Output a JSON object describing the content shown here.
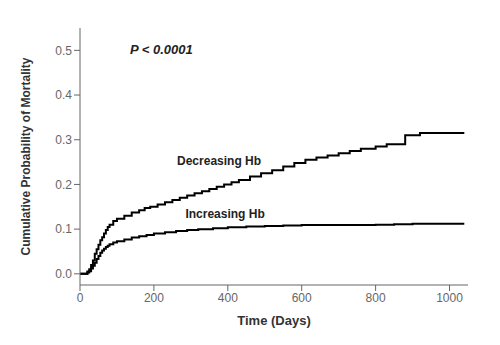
{
  "chart_data": {
    "type": "line",
    "line_style": "step",
    "xlabel": "Time (Days)",
    "ylabel": "Cumulative Probability of Mortality",
    "annotations": [
      {
        "text": "P < 0.0001"
      }
    ],
    "xlim": [
      0,
      1050
    ],
    "xticks": [
      0,
      200,
      400,
      600,
      800,
      1000
    ],
    "ylim": [
      -0.025,
      0.55
    ],
    "yticks": [
      {
        "value": 0.0,
        "label": "0.0"
      },
      0.1,
      0.2,
      0.3,
      0.4,
      0.5
    ],
    "grid": false,
    "legend": false,
    "series": [
      {
        "name": "Decreasing Hb",
        "color": "#000000",
        "x": [
          0,
          20,
          25,
          30,
          35,
          40,
          45,
          50,
          55,
          60,
          65,
          70,
          75,
          80,
          90,
          100,
          120,
          140,
          160,
          175,
          190,
          210,
          230,
          250,
          270,
          290,
          310,
          330,
          350,
          370,
          390,
          410,
          430,
          460,
          490,
          520,
          550,
          580,
          610,
          640,
          670,
          700,
          730,
          760,
          800,
          830,
          880,
          920,
          1040
        ],
        "values": [
          0.0,
          0.005,
          0.01,
          0.02,
          0.03,
          0.045,
          0.055,
          0.065,
          0.075,
          0.082,
          0.09,
          0.098,
          0.105,
          0.11,
          0.118,
          0.123,
          0.13,
          0.137,
          0.142,
          0.147,
          0.15,
          0.155,
          0.16,
          0.165,
          0.17,
          0.175,
          0.18,
          0.185,
          0.19,
          0.195,
          0.2,
          0.205,
          0.21,
          0.218,
          0.225,
          0.232,
          0.24,
          0.248,
          0.255,
          0.26,
          0.265,
          0.27,
          0.275,
          0.28,
          0.285,
          0.29,
          0.31,
          0.315,
          0.315
        ]
      },
      {
        "name": "Increasing Hb",
        "color": "#000000",
        "x": [
          0,
          20,
          25,
          30,
          35,
          40,
          45,
          50,
          55,
          60,
          65,
          70,
          75,
          80,
          90,
          100,
          120,
          140,
          160,
          180,
          200,
          230,
          260,
          290,
          320,
          360,
          400,
          450,
          500,
          550,
          600,
          650,
          700,
          750,
          800,
          850,
          900,
          950,
          1000,
          1040
        ],
        "values": [
          0.0,
          0.003,
          0.006,
          0.012,
          0.018,
          0.025,
          0.033,
          0.04,
          0.047,
          0.052,
          0.056,
          0.06,
          0.063,
          0.066,
          0.07,
          0.073,
          0.077,
          0.081,
          0.084,
          0.087,
          0.09,
          0.093,
          0.096,
          0.098,
          0.1,
          0.102,
          0.104,
          0.106,
          0.107,
          0.108,
          0.109,
          0.109,
          0.109,
          0.109,
          0.11,
          0.111,
          0.112,
          0.112,
          0.112,
          0.112
        ]
      }
    ]
  }
}
